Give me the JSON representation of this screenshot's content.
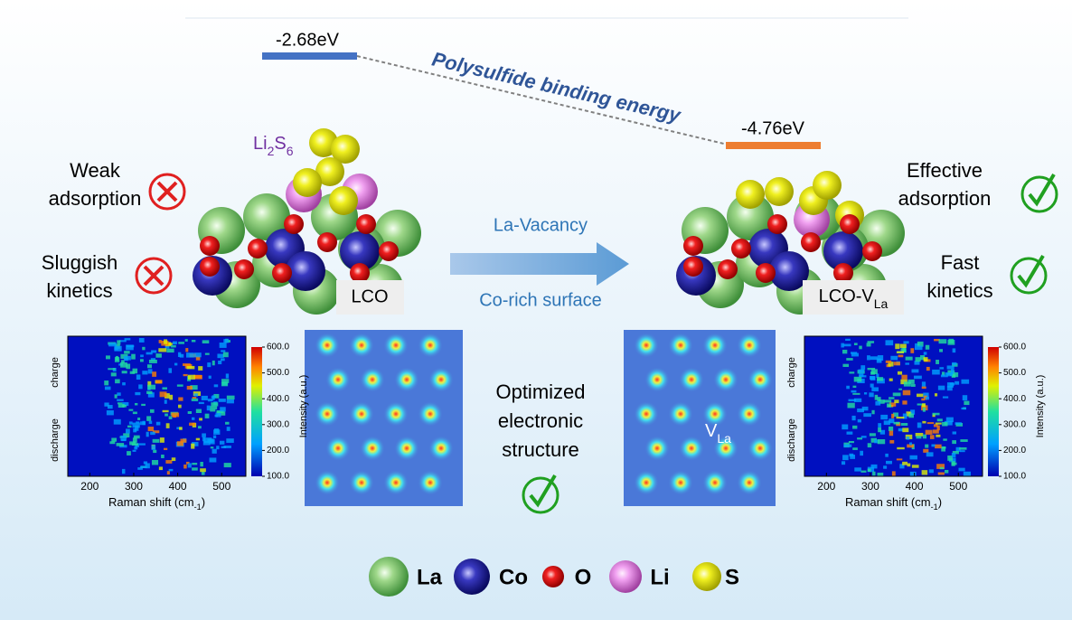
{
  "energy": {
    "left": "-2.68eV",
    "right": "-4.76eV",
    "label": "Polysulfide binding energy"
  },
  "adsorbate": [
    "Li",
    "2",
    "S",
    "6"
  ],
  "left_labels": {
    "adsorption": [
      "Weak",
      "adsorption"
    ],
    "kinetics": [
      "Sluggish",
      "kinetics"
    ]
  },
  "right_labels": {
    "adsorption": [
      "Effective",
      "adsorption"
    ],
    "kinetics": [
      "Fast",
      "kinetics"
    ]
  },
  "process": {
    "top": "La-Vacancy",
    "bottom": "Co-rich surface"
  },
  "samples": {
    "left": "LCO",
    "right": [
      "LCO-V",
      "La"
    ]
  },
  "center": [
    "Optimized",
    "electronic",
    "structure"
  ],
  "vacancy": [
    "V",
    "La"
  ],
  "raman": {
    "xlabel": [
      "Raman shift (cm",
      "-1",
      ")"
    ],
    "xlim": [
      150,
      555
    ],
    "xticks": [
      200,
      300,
      400,
      500
    ],
    "colorbar_label": "Intensity (a.u.)",
    "clim": [
      100,
      600
    ],
    "cticks": [
      {
        "value": 100,
        "label": "100.0"
      },
      {
        "value": 200,
        "label": "200.0"
      },
      {
        "value": 300,
        "label": "300.0"
      },
      {
        "value": 400,
        "label": "400.0"
      },
      {
        "value": 500,
        "label": "500.0"
      },
      {
        "value": 600,
        "label": "600.0"
      }
    ],
    "charge": "charge",
    "discharge": "discharge"
  },
  "legend": [
    "La",
    "Co",
    "O",
    "Li",
    "S"
  ]
}
